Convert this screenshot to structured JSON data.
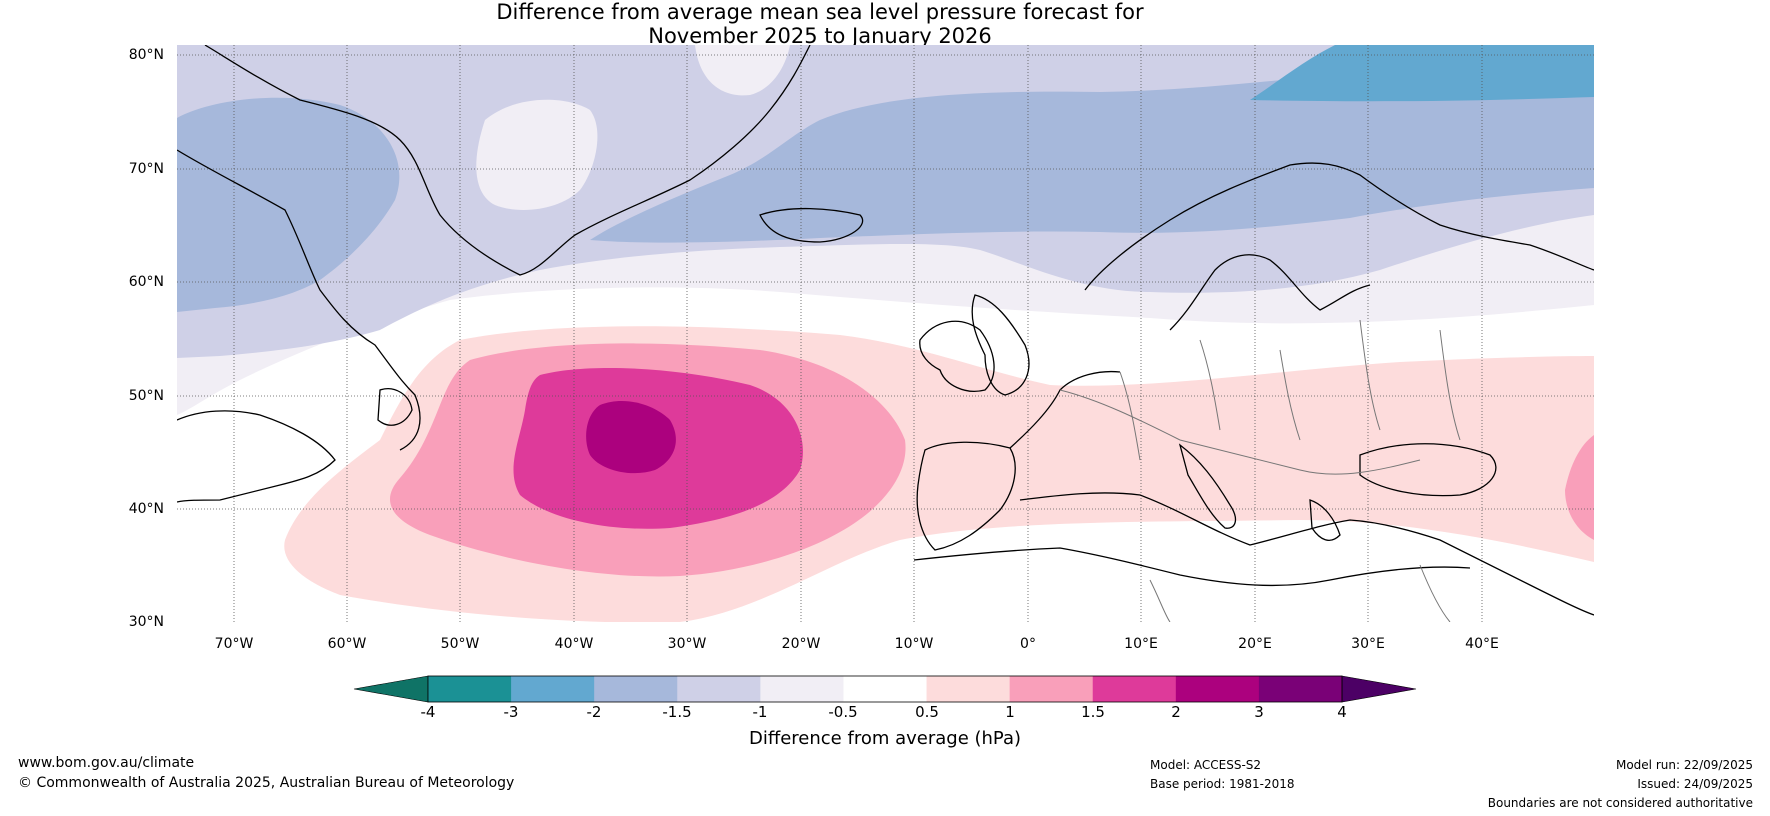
{
  "title": {
    "line1": "Difference from average mean sea level pressure forecast for",
    "line2": "November 2025 to January 2026"
  },
  "map": {
    "region": "North Atlantic and Europe",
    "lat_range": [
      30,
      80
    ],
    "lon_range": [
      -75,
      50
    ],
    "lat_labels": [
      "80°N",
      "70°N",
      "60°N",
      "50°N",
      "40°N",
      "30°N"
    ],
    "lon_labels": [
      "70°W",
      "60°W",
      "50°W",
      "40°W",
      "30°W",
      "20°W",
      "10°W",
      "0°",
      "10°E",
      "20°E",
      "30°E",
      "40°E"
    ]
  },
  "colorbar": {
    "ticks": [
      "-4",
      "-3",
      "-2",
      "-1.5",
      "-1",
      "-0.5",
      "0.5",
      "1",
      "1.5",
      "2",
      "3",
      "4"
    ],
    "colors": [
      "#1b9195",
      "#62a8d0",
      "#a6b8db",
      "#cfd0e7",
      "#f1eef5",
      "#ffffff",
      "#fddcdc",
      "#f99fba",
      "#de3a9a",
      "#ac017e",
      "#7a0177"
    ],
    "below_color": "#0f7366",
    "above_color": "#4c0065",
    "label": "Difference from average (hPa)"
  },
  "footer": {
    "website": "www.bom.gov.au/climate",
    "copyright": "© Commonwealth of Australia 2025, Australian Bureau of Meteorology",
    "model": "Model: ACCESS-S2",
    "base_period": "Base period: 1981-2018",
    "model_run": "Model run: 22/09/2025",
    "issued": "Issued: 24/09/2025",
    "disclaimer": "Boundaries are not considered authoritative"
  }
}
